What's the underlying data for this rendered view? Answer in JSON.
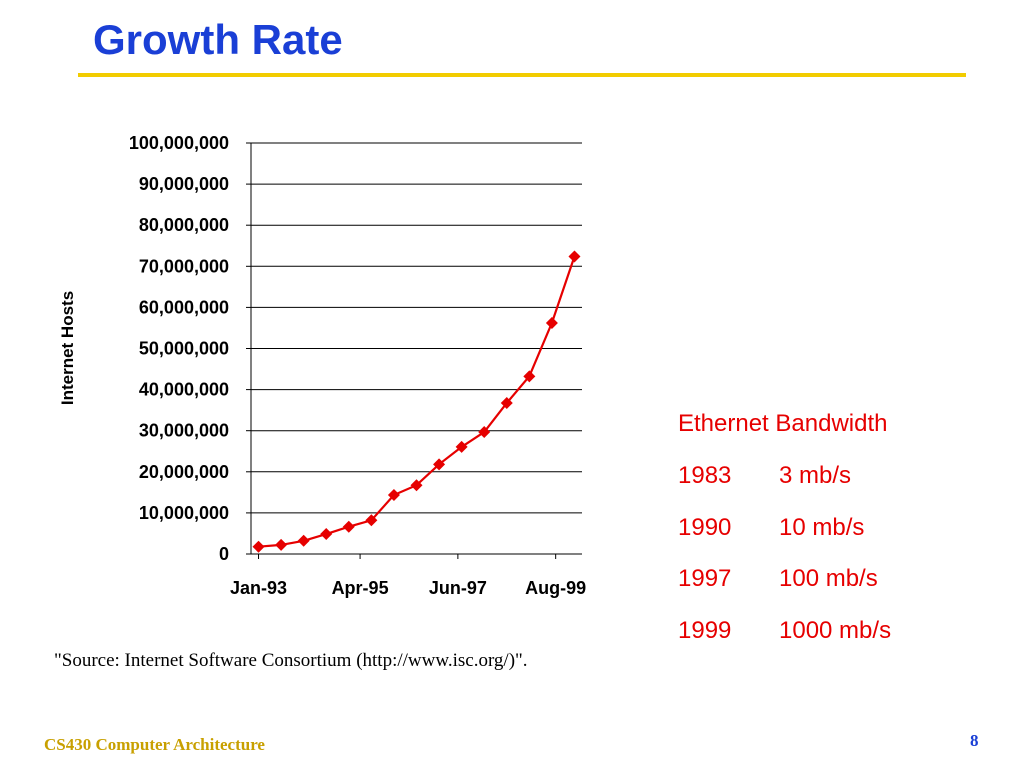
{
  "slide": {
    "title": "Growth Rate",
    "source": "\"Source: Internet Software Consortium (http://www.isc.org/)\".",
    "footer": "CS430 Computer Architecture",
    "page_number": "8"
  },
  "ethernet": {
    "title": "Ethernet Bandwidth",
    "rows": [
      {
        "year": "1983",
        "speed": "3 mb/s"
      },
      {
        "year": "1990",
        "speed": "10 mb/s"
      },
      {
        "year": "1997",
        "speed": "100 mb/s"
      },
      {
        "year": "1999",
        "speed": "1000 mb/s"
      }
    ]
  },
  "colors": {
    "title": "#1a3fd6",
    "rule": "#f2cc00",
    "series": "#e60000",
    "ethernet_text": "#e60000",
    "footer": "#c8a000"
  },
  "chart_data": {
    "type": "line",
    "title": "",
    "xlabel": "",
    "ylabel": "Internet Hosts",
    "ylim": [
      0,
      100000000
    ],
    "yticks": [
      "0",
      "10,000,000",
      "20,000,000",
      "30,000,000",
      "40,000,000",
      "50,000,000",
      "60,000,000",
      "70,000,000",
      "80,000,000",
      "90,000,000",
      "100,000,000"
    ],
    "xticks": [
      "Jan-93",
      "Apr-95",
      "Jun-97",
      "Aug-99"
    ],
    "grid": true,
    "legend": "none",
    "series": [
      {
        "marker": "diamond",
        "x": [
          "Jan-93",
          "Jul-93",
          "Jan-94",
          "Jul-94",
          "Jan-95",
          "Jul-95",
          "Jan-96",
          "Jul-96",
          "Jan-97",
          "Jul-97",
          "Jan-98",
          "Jul-98",
          "Jan-99",
          "Jul-99",
          "Jan-00"
        ],
        "values": [
          1776000,
          2217000,
          3212000,
          4852000,
          6642000,
          8200000,
          14352000,
          16729000,
          21819000,
          26053000,
          29670000,
          36739000,
          43230000,
          56218000,
          72398000
        ]
      }
    ]
  }
}
